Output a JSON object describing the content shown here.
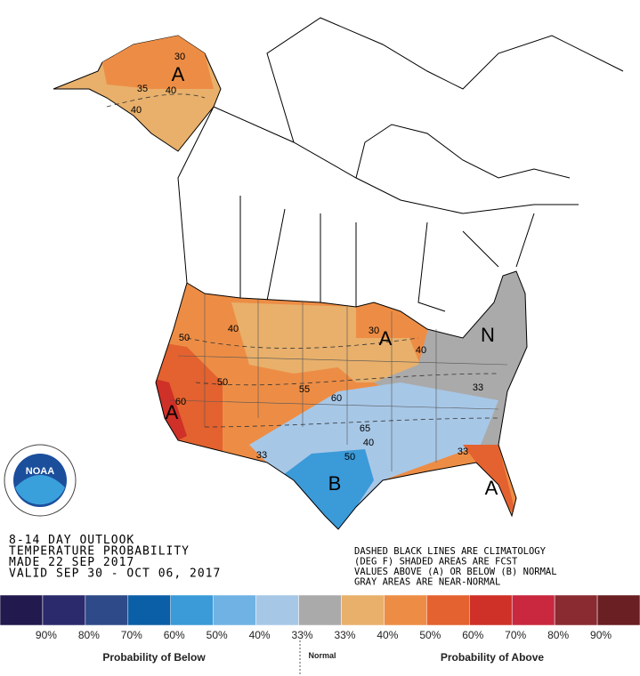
{
  "header": {
    "lines": [
      "8-14 DAY OUTLOOK",
      "TEMPERATURE PROBABILITY",
      "MADE  22 SEP 2017",
      "VALID  SEP 30 - OCT 06, 2017"
    ]
  },
  "notes": {
    "lines": [
      "DASHED BLACK LINES ARE CLIMATOLOGY",
      "(DEG F) SHADED AREAS ARE FCST",
      "VALUES ABOVE (A) OR BELOW (B) NORMAL",
      "GRAY AREAS ARE NEAR-NORMAL"
    ]
  },
  "logo": {
    "text": "NOAA"
  },
  "map": {
    "labels": [
      "A",
      "A",
      "N",
      "A",
      "A",
      "B"
    ],
    "contours": [
      "30",
      "35",
      "40",
      "40",
      "50",
      "40",
      "50",
      "60",
      "55",
      "60",
      "65",
      "40",
      "50",
      "33",
      "33",
      "33",
      "30",
      "40"
    ]
  },
  "legend": {
    "colors": [
      "#221a4e",
      "#2b2a6d",
      "#2f4a88",
      "#0b5fa6",
      "#3b9ad8",
      "#70b2e3",
      "#a7c7e7",
      "#aaaaaa",
      "#e8b06b",
      "#ed8d45",
      "#e3622f",
      "#cf3027",
      "#c9283f",
      "#8a2a31",
      "#6a1f23"
    ],
    "labels": [
      "90%",
      "80%",
      "70%",
      "60%",
      "50%",
      "40%",
      "33%",
      "33%",
      "40%",
      "50%",
      "60%",
      "70%",
      "80%",
      "90%"
    ],
    "captions": [
      "Probability of Below",
      "Normal",
      "Probability of Above"
    ]
  }
}
